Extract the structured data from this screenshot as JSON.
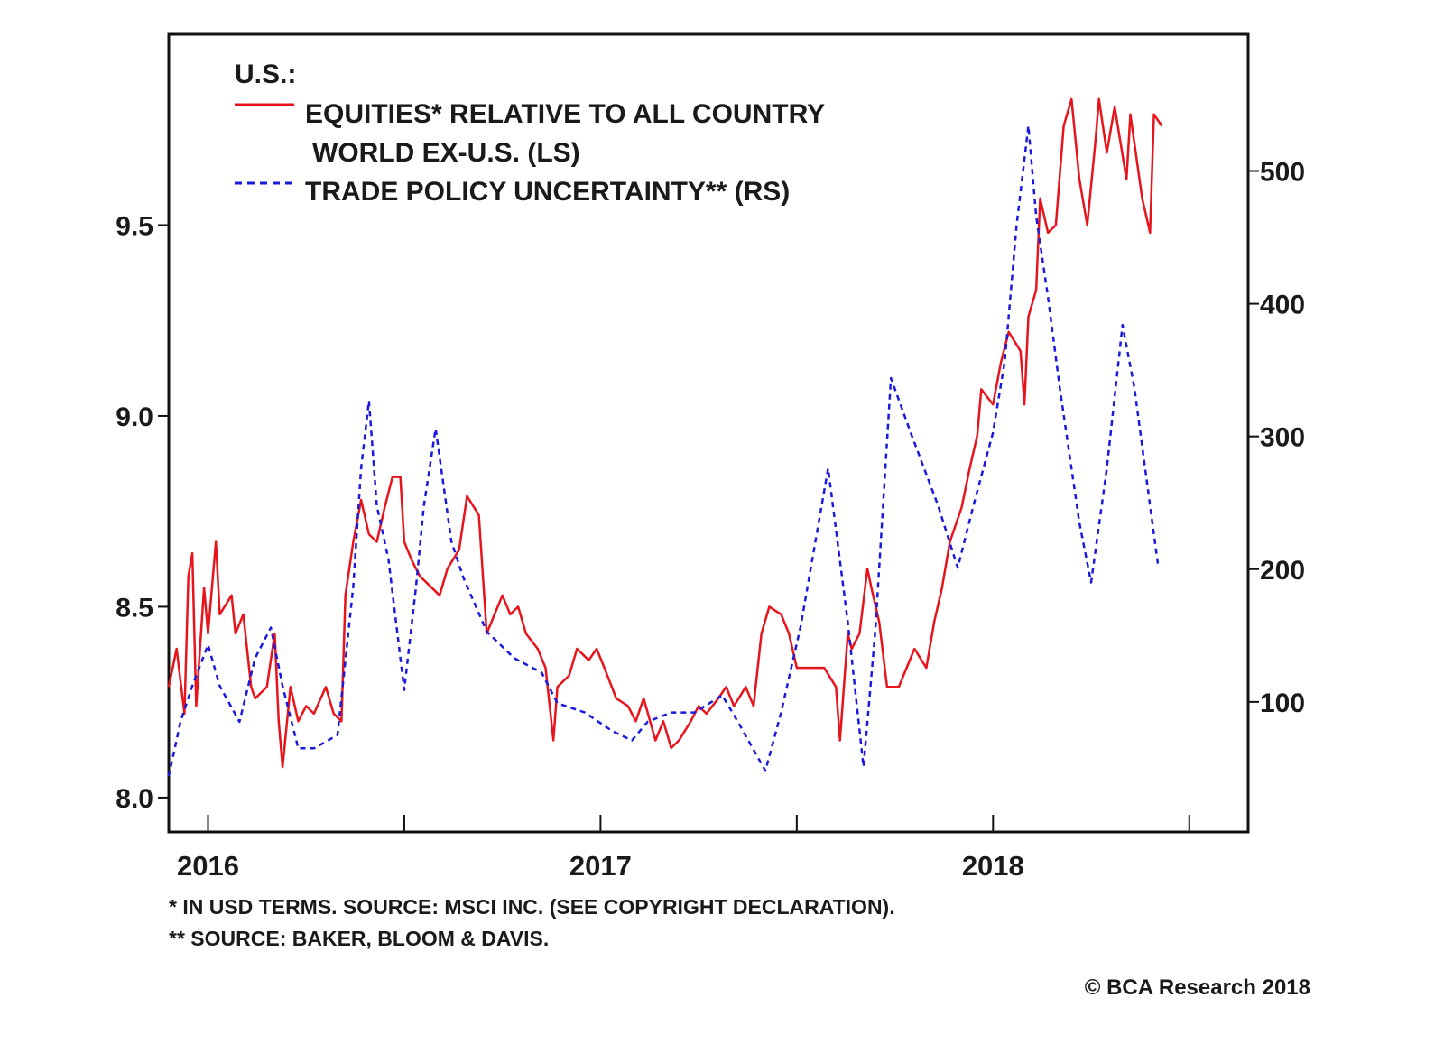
{
  "chart_data": {
    "type": "line",
    "legend": {
      "title": "U.S.:",
      "placement": "top-left",
      "entries": [
        {
          "line1": "EQUITIES* RELATIVE TO ALL COUNTRY",
          "line2": "WORLD EX-U.S. (LS)",
          "style": "solid"
        },
        {
          "line1": "TRADE POLICY UNCERTAINTY** (RS)",
          "style": "dashed"
        }
      ]
    },
    "x_axis": {
      "range": [
        2015.9,
        2018.65
      ],
      "ticks": [
        2016,
        2016.5,
        2017,
        2017.5,
        2018,
        2018.5
      ],
      "tick_labels": [
        {
          "value": 2016,
          "label": "2016"
        },
        {
          "value": 2017,
          "label": "2017"
        },
        {
          "value": 2018,
          "label": "2018"
        }
      ]
    },
    "y_left": {
      "range": [
        7.91,
        10.0
      ],
      "ticks": [
        8.0,
        8.5,
        9.0,
        9.5
      ],
      "tick_labels": [
        "8.0",
        "8.5",
        "9.0",
        "9.5"
      ]
    },
    "y_right": {
      "range": [
        2,
        603
      ],
      "ticks": [
        100,
        200,
        300,
        400,
        500
      ],
      "tick_labels": [
        "100",
        "200",
        "300",
        "400",
        "500"
      ]
    },
    "grid": false,
    "series": [
      {
        "name": "EQUITIES* RELATIVE TO ALL COUNTRY WORLD EX-U.S. (LS)",
        "axis": "left",
        "color": "#e8141c",
        "style": "solid",
        "points": [
          [
            2015.9,
            8.29
          ],
          [
            2015.92,
            8.39
          ],
          [
            2015.94,
            8.22
          ],
          [
            2015.95,
            8.58
          ],
          [
            2015.96,
            8.64
          ],
          [
            2015.97,
            8.24
          ],
          [
            2015.99,
            8.55
          ],
          [
            2016.0,
            8.43
          ],
          [
            2016.02,
            8.67
          ],
          [
            2016.03,
            8.48
          ],
          [
            2016.06,
            8.53
          ],
          [
            2016.07,
            8.43
          ],
          [
            2016.09,
            8.48
          ],
          [
            2016.11,
            8.29
          ],
          [
            2016.12,
            8.26
          ],
          [
            2016.15,
            8.29
          ],
          [
            2016.17,
            8.43
          ],
          [
            2016.18,
            8.2
          ],
          [
            2016.19,
            8.08
          ],
          [
            2016.21,
            8.29
          ],
          [
            2016.23,
            8.2
          ],
          [
            2016.25,
            8.24
          ],
          [
            2016.27,
            8.22
          ],
          [
            2016.3,
            8.29
          ],
          [
            2016.32,
            8.22
          ],
          [
            2016.34,
            8.2
          ],
          [
            2016.35,
            8.53
          ],
          [
            2016.37,
            8.67
          ],
          [
            2016.39,
            8.78
          ],
          [
            2016.41,
            8.69
          ],
          [
            2016.43,
            8.67
          ],
          [
            2016.45,
            8.76
          ],
          [
            2016.47,
            8.84
          ],
          [
            2016.49,
            8.84
          ],
          [
            2016.5,
            8.67
          ],
          [
            2016.52,
            8.62
          ],
          [
            2016.54,
            8.58
          ],
          [
            2016.57,
            8.55
          ],
          [
            2016.59,
            8.53
          ],
          [
            2016.61,
            8.6
          ],
          [
            2016.64,
            8.65
          ],
          [
            2016.66,
            8.79
          ],
          [
            2016.69,
            8.74
          ],
          [
            2016.71,
            8.43
          ],
          [
            2016.73,
            8.48
          ],
          [
            2016.75,
            8.53
          ],
          [
            2016.77,
            8.48
          ],
          [
            2016.79,
            8.5
          ],
          [
            2016.81,
            8.43
          ],
          [
            2016.84,
            8.39
          ],
          [
            2016.86,
            8.34
          ],
          [
            2016.88,
            8.15
          ],
          [
            2016.89,
            8.29
          ],
          [
            2016.92,
            8.32
          ],
          [
            2016.94,
            8.39
          ],
          [
            2016.97,
            8.36
          ],
          [
            2016.99,
            8.39
          ],
          [
            2017.01,
            8.34
          ],
          [
            2017.04,
            8.26
          ],
          [
            2017.07,
            8.24
          ],
          [
            2017.09,
            8.2
          ],
          [
            2017.11,
            8.26
          ],
          [
            2017.14,
            8.15
          ],
          [
            2017.16,
            8.2
          ],
          [
            2017.18,
            8.13
          ],
          [
            2017.2,
            8.15
          ],
          [
            2017.23,
            8.2
          ],
          [
            2017.25,
            8.24
          ],
          [
            2017.27,
            8.22
          ],
          [
            2017.3,
            8.26
          ],
          [
            2017.32,
            8.29
          ],
          [
            2017.34,
            8.24
          ],
          [
            2017.37,
            8.29
          ],
          [
            2017.39,
            8.24
          ],
          [
            2017.41,
            8.43
          ],
          [
            2017.43,
            8.5
          ],
          [
            2017.46,
            8.48
          ],
          [
            2017.48,
            8.43
          ],
          [
            2017.5,
            8.34
          ],
          [
            2017.53,
            8.34
          ],
          [
            2017.55,
            8.34
          ],
          [
            2017.57,
            8.34
          ],
          [
            2017.6,
            8.29
          ],
          [
            2017.61,
            8.15
          ],
          [
            2017.63,
            8.43
          ],
          [
            2017.64,
            8.39
          ],
          [
            2017.66,
            8.43
          ],
          [
            2017.68,
            8.6
          ],
          [
            2017.69,
            8.55
          ],
          [
            2017.71,
            8.46
          ],
          [
            2017.73,
            8.29
          ],
          [
            2017.76,
            8.29
          ],
          [
            2017.78,
            8.34
          ],
          [
            2017.8,
            8.39
          ],
          [
            2017.83,
            8.34
          ],
          [
            2017.85,
            8.46
          ],
          [
            2017.87,
            8.55
          ],
          [
            2017.89,
            8.67
          ],
          [
            2017.92,
            8.76
          ],
          [
            2017.94,
            8.86
          ],
          [
            2017.96,
            8.95
          ],
          [
            2017.97,
            9.07
          ],
          [
            2018.0,
            9.03
          ],
          [
            2018.02,
            9.14
          ],
          [
            2018.04,
            9.22
          ],
          [
            2018.07,
            9.17
          ],
          [
            2018.08,
            9.03
          ],
          [
            2018.09,
            9.26
          ],
          [
            2018.11,
            9.33
          ],
          [
            2018.12,
            9.57
          ],
          [
            2018.14,
            9.48
          ],
          [
            2018.16,
            9.5
          ],
          [
            2018.18,
            9.76
          ],
          [
            2018.2,
            9.83
          ],
          [
            2018.22,
            9.62
          ],
          [
            2018.24,
            9.5
          ],
          [
            2018.26,
            9.71
          ],
          [
            2018.27,
            9.83
          ],
          [
            2018.29,
            9.69
          ],
          [
            2018.31,
            9.81
          ],
          [
            2018.34,
            9.62
          ],
          [
            2018.35,
            9.79
          ],
          [
            2018.38,
            9.57
          ],
          [
            2018.4,
            9.48
          ],
          [
            2018.41,
            9.79
          ],
          [
            2018.43,
            9.76
          ]
        ]
      },
      {
        "name": "TRADE POLICY UNCERTAINTY** (RS)",
        "axis": "right",
        "color": "#1a1adc",
        "style": "dashed",
        "points": [
          [
            2015.9,
            44
          ],
          [
            2015.93,
            85
          ],
          [
            2015.96,
            112
          ],
          [
            2016.0,
            143
          ],
          [
            2016.03,
            112
          ],
          [
            2016.08,
            85
          ],
          [
            2016.12,
            133
          ],
          [
            2016.16,
            156
          ],
          [
            2016.19,
            112
          ],
          [
            2016.23,
            65
          ],
          [
            2016.27,
            65
          ],
          [
            2016.33,
            75
          ],
          [
            2016.37,
            187
          ],
          [
            2016.39,
            276
          ],
          [
            2016.41,
            327
          ],
          [
            2016.43,
            248
          ],
          [
            2016.46,
            207
          ],
          [
            2016.5,
            109
          ],
          [
            2016.53,
            187
          ],
          [
            2016.55,
            248
          ],
          [
            2016.58,
            306
          ],
          [
            2016.62,
            221
          ],
          [
            2016.65,
            194
          ],
          [
            2016.71,
            153
          ],
          [
            2016.78,
            133
          ],
          [
            2016.85,
            122
          ],
          [
            2016.89,
            99
          ],
          [
            2016.96,
            92
          ],
          [
            2017.03,
            78
          ],
          [
            2017.08,
            71
          ],
          [
            2017.12,
            85
          ],
          [
            2017.18,
            92
          ],
          [
            2017.24,
            92
          ],
          [
            2017.31,
            105
          ],
          [
            2017.35,
            85
          ],
          [
            2017.42,
            48
          ],
          [
            2017.46,
            92
          ],
          [
            2017.51,
            157
          ],
          [
            2017.58,
            276
          ],
          [
            2017.63,
            160
          ],
          [
            2017.67,
            51
          ],
          [
            2017.7,
            153
          ],
          [
            2017.74,
            344
          ],
          [
            2017.79,
            303
          ],
          [
            2017.86,
            248
          ],
          [
            2017.91,
            201
          ],
          [
            2017.95,
            248
          ],
          [
            2018.0,
            303
          ],
          [
            2018.03,
            357
          ],
          [
            2018.06,
            459
          ],
          [
            2018.09,
            534
          ],
          [
            2018.11,
            466
          ],
          [
            2018.14,
            405
          ],
          [
            2018.17,
            337
          ],
          [
            2018.22,
            235
          ],
          [
            2018.25,
            190
          ],
          [
            2018.29,
            276
          ],
          [
            2018.33,
            384
          ],
          [
            2018.36,
            337
          ],
          [
            2018.4,
            248
          ],
          [
            2018.42,
            204
          ]
        ]
      }
    ],
    "footnotes": [
      "*  IN USD TERMS. SOURCE: MSCI INC. (SEE COPYRIGHT DECLARATION).",
      "** SOURCE: BAKER, BLOOM & DAVIS."
    ],
    "copyright": "© BCA Research 2018"
  }
}
